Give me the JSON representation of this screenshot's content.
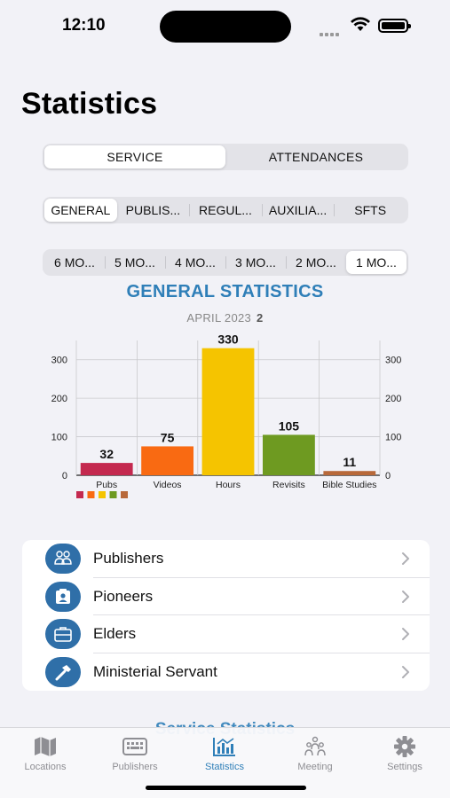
{
  "status_bar": {
    "time": "12:10"
  },
  "page_title": "Statistics",
  "main_segment": [
    {
      "label": "SERVICE",
      "active": true
    },
    {
      "label": "ATTENDANCES",
      "active": false
    }
  ],
  "category_segment": [
    {
      "label": "GENERAL",
      "active": true
    },
    {
      "label": "PUBLIS...",
      "active": false
    },
    {
      "label": "REGUL...",
      "active": false
    },
    {
      "label": "AUXILIA...",
      "active": false
    },
    {
      "label": "SFTS",
      "active": false
    }
  ],
  "month_segment": [
    {
      "label": "6 MO...",
      "active": false
    },
    {
      "label": "5 MO...",
      "active": false
    },
    {
      "label": "4 MO...",
      "active": false
    },
    {
      "label": "3 MO...",
      "active": false
    },
    {
      "label": "2 MO...",
      "active": false
    },
    {
      "label": "1 MO...",
      "active": true
    }
  ],
  "chart_title": "GENERAL STATISTICS",
  "chart_subtitle": "APRIL 2023",
  "chart_subtitle_count": "2",
  "chart_data": {
    "type": "bar",
    "categories": [
      "Pubs",
      "Videos",
      "Hours",
      "Revisits",
      "Bible Studies"
    ],
    "values": [
      32,
      75,
      330,
      105,
      11
    ],
    "colors": [
      "#c4294f",
      "#f96a12",
      "#f5c400",
      "#6e9a21",
      "#b8693a"
    ],
    "yticks": [
      "0",
      "100",
      "200",
      "300"
    ],
    "ylim": [
      0,
      350
    ],
    "grid": true,
    "right_axis": true,
    "legend": "bottom-left"
  },
  "list": [
    {
      "label": "Publishers",
      "icon": "people-icon"
    },
    {
      "label": "Pioneers",
      "icon": "id-card-icon"
    },
    {
      "label": "Elders",
      "icon": "briefcase-icon"
    },
    {
      "label": "Ministerial Servant",
      "icon": "hammer-icon"
    }
  ],
  "peek_title": "Service Statistics",
  "tabs": [
    {
      "label": "Locations",
      "icon": "map-icon",
      "active": false
    },
    {
      "label": "Publishers",
      "icon": "keyboard-icon",
      "active": false
    },
    {
      "label": "Statistics",
      "icon": "chart-icon",
      "active": true
    },
    {
      "label": "Meeting",
      "icon": "meeting-icon",
      "active": false
    },
    {
      "label": "Settings",
      "icon": "gear-icon",
      "active": false
    }
  ],
  "colors": {
    "accent": "#2f7fb8",
    "icon_circle": "#2f6fa8"
  }
}
